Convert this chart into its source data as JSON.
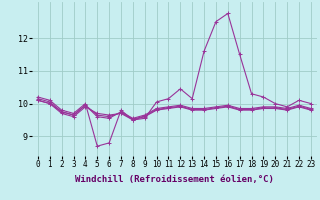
{
  "x": [
    0,
    1,
    2,
    3,
    4,
    5,
    6,
    7,
    8,
    9,
    10,
    11,
    12,
    13,
    14,
    15,
    16,
    17,
    18,
    19,
    20,
    21,
    22,
    23
  ],
  "series": [
    [
      10.2,
      10.1,
      9.8,
      9.7,
      10.0,
      8.7,
      8.8,
      9.8,
      9.5,
      9.55,
      10.05,
      10.15,
      10.45,
      10.15,
      11.6,
      12.5,
      12.75,
      11.5,
      10.3,
      10.2,
      10.0,
      9.9,
      10.1,
      10.0
    ],
    [
      10.15,
      10.05,
      9.75,
      9.65,
      9.95,
      9.6,
      9.55,
      9.75,
      9.55,
      9.65,
      9.85,
      9.9,
      9.95,
      9.85,
      9.85,
      9.9,
      9.95,
      9.85,
      9.85,
      9.9,
      9.9,
      9.85,
      9.95,
      9.85
    ],
    [
      10.1,
      10.0,
      9.7,
      9.6,
      9.9,
      9.7,
      9.65,
      9.7,
      9.5,
      9.6,
      9.8,
      9.85,
      9.9,
      9.8,
      9.8,
      9.85,
      9.9,
      9.8,
      9.8,
      9.85,
      9.85,
      9.8,
      9.9,
      9.8
    ],
    [
      10.1,
      10.0,
      9.75,
      9.65,
      9.95,
      9.65,
      9.6,
      9.72,
      9.52,
      9.62,
      9.82,
      9.87,
      9.92,
      9.82,
      9.82,
      9.87,
      9.92,
      9.82,
      9.82,
      9.87,
      9.87,
      9.82,
      9.92,
      9.82
    ]
  ],
  "line_color": "#993399",
  "marker": "+",
  "ylabel_ticks": [
    9,
    10,
    11,
    12
  ],
  "xlabel": "Windchill (Refroidissement éolien,°C)",
  "ylim": [
    8.4,
    13.1
  ],
  "xlim": [
    -0.5,
    23.5
  ],
  "bg_color": "#c8eef0",
  "grid_color": "#a0ccc8",
  "tick_fontsize": 5.5,
  "xlabel_fontsize": 6.5
}
